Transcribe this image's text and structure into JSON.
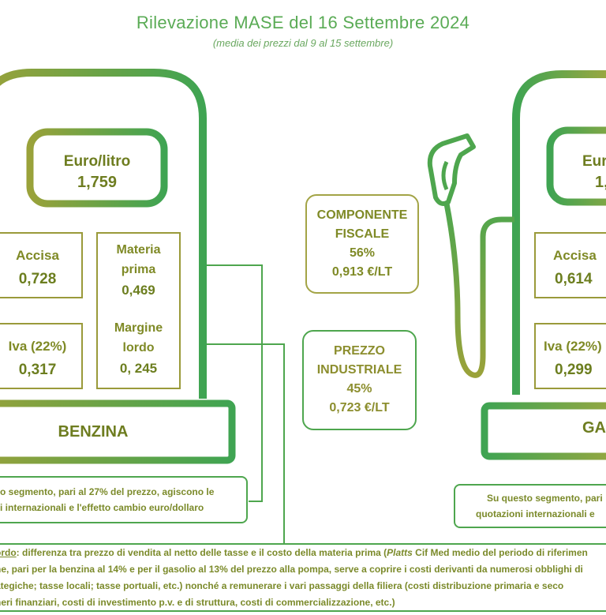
{
  "header": {
    "title": "Rilevazione MASE del 16 Settembre 2024",
    "subtitle": "(media dei prezzi dal 9 al 15 settembre)"
  },
  "benzina": {
    "price_label": "Euro/litro",
    "price_value": "1,759",
    "accisa_label": "Accisa",
    "accisa_value": "0,728",
    "iva_label": "Iva (22%)",
    "iva_value": "0,317",
    "materia_label_1": "Materia",
    "materia_label_2": "prima",
    "materia_value": "0,469",
    "margine_label_1": "Margine",
    "margine_label_2": "lordo",
    "margine_value": "0, 245",
    "name": "BENZINA",
    "note_line_1": "o segmento, pari al 27% del prezzo, agiscono le",
    "note_line_2": "i internazionali e l'effetto cambio euro/dollaro"
  },
  "center": {
    "fiscale_line_1": "COMPONENTE",
    "fiscale_line_2": "FISCALE",
    "fiscale_pct": "56%",
    "fiscale_value": "0,913 €/LT",
    "industriale_line_1": "PREZZO",
    "industriale_line_2": "INDUSTRIALE",
    "industriale_pct": "45%",
    "industriale_value": "0,723 €/LT"
  },
  "gasolio": {
    "price_label": "Eur",
    "price_value": "1,",
    "accisa_label": "Accisa",
    "accisa_value": "0,614",
    "iva_label": "Iva (22%)",
    "iva_value": "0,299",
    "name": "GA",
    "note_line_1": "Su questo segmento, pari",
    "note_line_2": "quotazioni internazionali e"
  },
  "footer": {
    "line_1_u": "ordo",
    "line_1": ": differenza tra prezzo di vendita al netto delle tasse e il costo della materia prima (",
    "line_1_i": "Platts",
    "line_1_b": " Cif Med medio del periodo di riferimen",
    "line_2": "ne, pari per la benzina al 14% e per il gasolio al 13% del prezzo alla pompa, serve a coprire i costi derivanti da numerosi obblighi di",
    "line_3": "ategiche; tasse locali; tasse portuali, etc.) nonché a remunerare i vari passaggi della filiera (costi distribuzione primaria e seco",
    "line_4": "neri finanziari, costi di investimento p.v. e di struttura, costi di commercializzazione, etc.)"
  },
  "colors": {
    "olive": "#9a9a3a",
    "green": "#4ea64e",
    "title_green": "#5aab55"
  }
}
